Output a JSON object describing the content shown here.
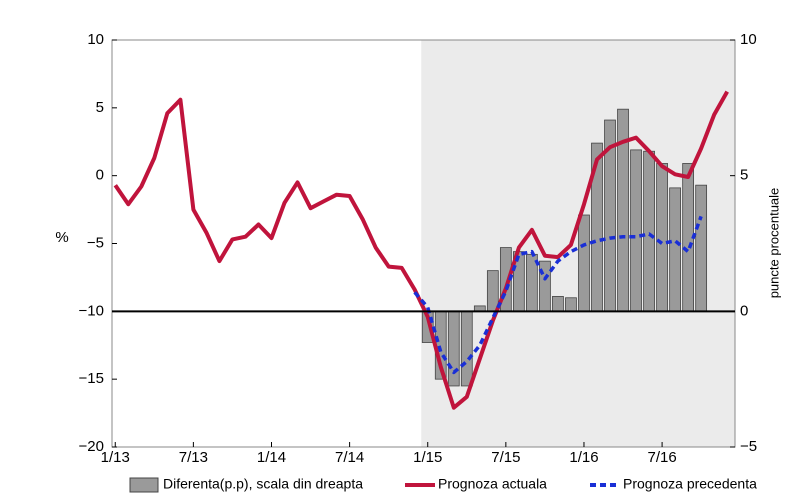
{
  "chart_data": {
    "type": "line",
    "y_label": "%",
    "y2_label": "puncte procentuale",
    "categories": [
      "1/13",
      null,
      null,
      null,
      null,
      null,
      "7/13",
      null,
      null,
      null,
      null,
      null,
      "1/14",
      null,
      null,
      null,
      null,
      null,
      "7/14",
      null,
      null,
      null,
      null,
      null,
      "1/15",
      null,
      null,
      null,
      null,
      null,
      "7/15",
      null,
      null,
      null,
      null,
      null,
      "1/16",
      null,
      null,
      null,
      null,
      null,
      "7/16",
      null,
      null,
      null,
      null,
      null
    ],
    "xlim": [
      -0.25,
      47.6
    ],
    "ylim": [
      -20,
      10
    ],
    "yticks": [
      {
        "value": -20,
        "label": "−20"
      },
      {
        "value": -15,
        "label": "−15"
      },
      {
        "value": -10,
        "label": "−10"
      },
      {
        "value": -5,
        "label": "−5"
      },
      0,
      5,
      10
    ],
    "y2lim": [
      -5,
      10
    ],
    "y2ticks": [
      {
        "value": -5,
        "label": "−5"
      },
      0,
      5,
      10
    ],
    "forecast_shading": {
      "from": 24,
      "color": "#ebebeb"
    },
    "series": [
      {
        "name": "Diferenta(p.p), scala din dreapta",
        "type": "bar",
        "axis": "y2",
        "color": "#9a9a9a",
        "values": [
          null,
          null,
          null,
          null,
          null,
          null,
          null,
          null,
          null,
          null,
          null,
          null,
          null,
          null,
          null,
          null,
          null,
          null,
          null,
          null,
          null,
          null,
          null,
          null,
          -1.15,
          -2.5,
          -2.75,
          -2.75,
          0.2,
          1.5,
          2.35,
          2.2,
          2.1,
          1.85,
          0.55,
          0.5,
          3.55,
          6.2,
          7.05,
          7.45,
          5.95,
          5.9,
          5.45,
          4.55,
          5.45,
          4.65,
          null,
          null
        ]
      },
      {
        "name": "Prognoza actuala",
        "type": "line",
        "color": "#c0143c",
        "values": [
          -0.7,
          -2.1,
          -0.8,
          1.3,
          4.6,
          5.6,
          -2.5,
          -4.2,
          -6.3,
          -4.7,
          -4.5,
          -3.6,
          -4.6,
          -2.0,
          -0.5,
          -2.4,
          -1.9,
          -1.4,
          -1.5,
          -3.2,
          -5.3,
          -6.7,
          -6.8,
          -8.4,
          -10.4,
          -14.1,
          -17.1,
          -16.3,
          -13.5,
          -10.7,
          -8.3,
          -5.3,
          -4.0,
          -5.9,
          -6.0,
          -5.1,
          -2.1,
          1.2,
          2.1,
          2.5,
          2.8,
          1.8,
          0.7,
          0.1,
          -0.1,
          2.0,
          4.5,
          6.2
        ]
      },
      {
        "name": "Prognoza precedenta",
        "type": "line",
        "dashed": true,
        "color": "#1a2fd6",
        "values": [
          null,
          null,
          null,
          null,
          null,
          null,
          null,
          null,
          null,
          null,
          null,
          null,
          null,
          null,
          null,
          null,
          null,
          null,
          null,
          null,
          null,
          null,
          null,
          -8.6,
          -9.7,
          -13.0,
          -14.5,
          -13.7,
          -12.5,
          -10.5,
          -8.5,
          -5.8,
          -5.6,
          -7.6,
          -6.3,
          -5.6,
          -5.1,
          -4.8,
          -4.6,
          -4.5,
          -4.5,
          -4.3,
          -5.0,
          -4.8,
          -5.6,
          -3.0,
          null,
          null
        ]
      }
    ]
  }
}
